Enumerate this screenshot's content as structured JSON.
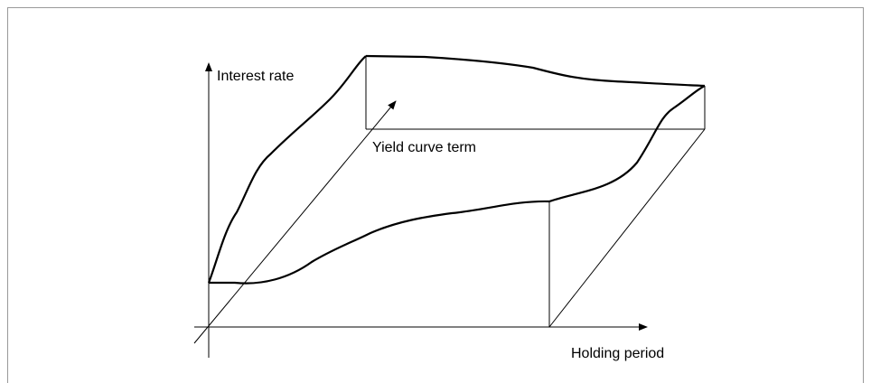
{
  "labels": {
    "y_axis": "Interest rate",
    "depth_axis": "Yield curve term",
    "x_axis": "Holding period"
  }
}
